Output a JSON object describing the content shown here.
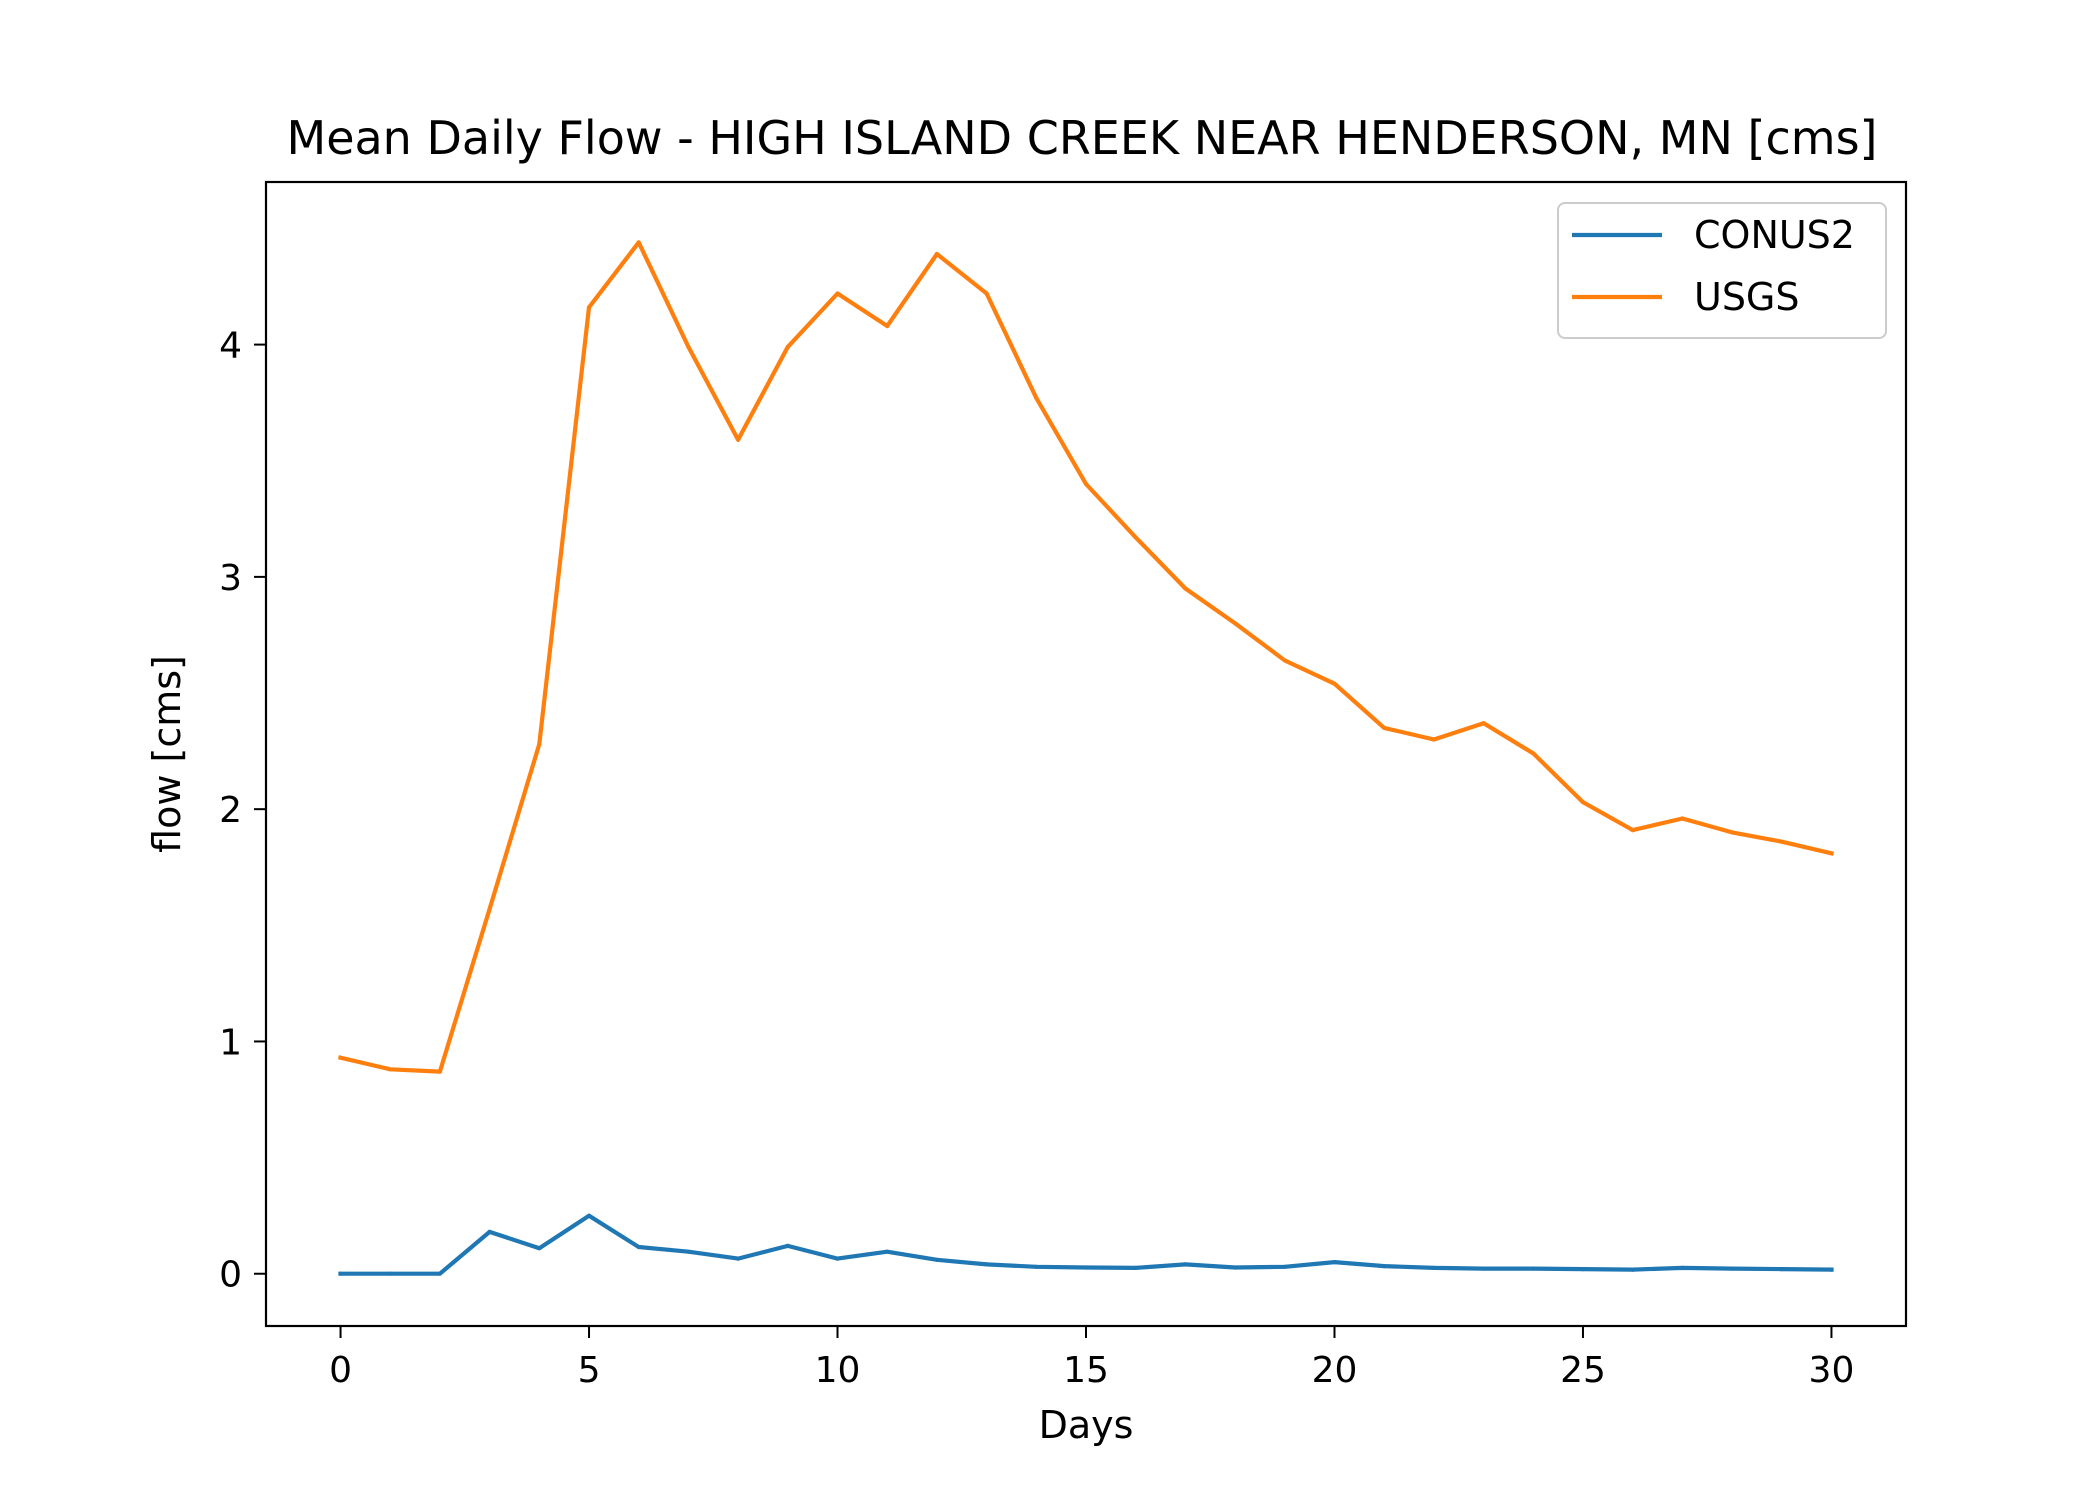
{
  "chart_data": {
    "type": "line",
    "title": "Mean Daily Flow - HIGH ISLAND CREEK NEAR HENDERSON, MN [cms]",
    "xlabel": "Days",
    "ylabel": "flow [cms]",
    "xlim": [
      -1.5,
      31.5
    ],
    "ylim": [
      -0.225,
      4.7
    ],
    "x_ticks": [
      0,
      5,
      10,
      15,
      20,
      25,
      30
    ],
    "y_ticks": [
      0,
      1,
      2,
      3,
      4
    ],
    "grid": false,
    "legend_position": "upper right",
    "x": [
      0,
      1,
      2,
      3,
      4,
      5,
      6,
      7,
      8,
      9,
      10,
      11,
      12,
      13,
      14,
      15,
      16,
      17,
      18,
      19,
      20,
      21,
      22,
      23,
      24,
      25,
      26,
      27,
      28,
      29,
      30
    ],
    "series": [
      {
        "name": "CONUS2",
        "color": "#1f77b4",
        "values": [
          0.0,
          0.0,
          0.0,
          0.18,
          0.11,
          0.25,
          0.115,
          0.095,
          0.065,
          0.12,
          0.065,
          0.095,
          0.06,
          0.04,
          0.03,
          0.027,
          0.025,
          0.04,
          0.027,
          0.03,
          0.05,
          0.033,
          0.025,
          0.022,
          0.022,
          0.02,
          0.018,
          0.025,
          0.022,
          0.02,
          0.018
        ]
      },
      {
        "name": "USGS",
        "color": "#ff7f0e",
        "values": [
          0.93,
          0.88,
          0.87,
          1.57,
          2.28,
          4.16,
          4.44,
          3.99,
          3.59,
          3.99,
          4.22,
          4.08,
          4.39,
          4.22,
          3.77,
          3.4,
          3.17,
          2.95,
          2.8,
          2.64,
          2.54,
          2.35,
          2.3,
          2.37,
          2.24,
          2.03,
          1.91,
          1.96,
          1.9,
          1.86,
          1.81
        ]
      }
    ]
  }
}
